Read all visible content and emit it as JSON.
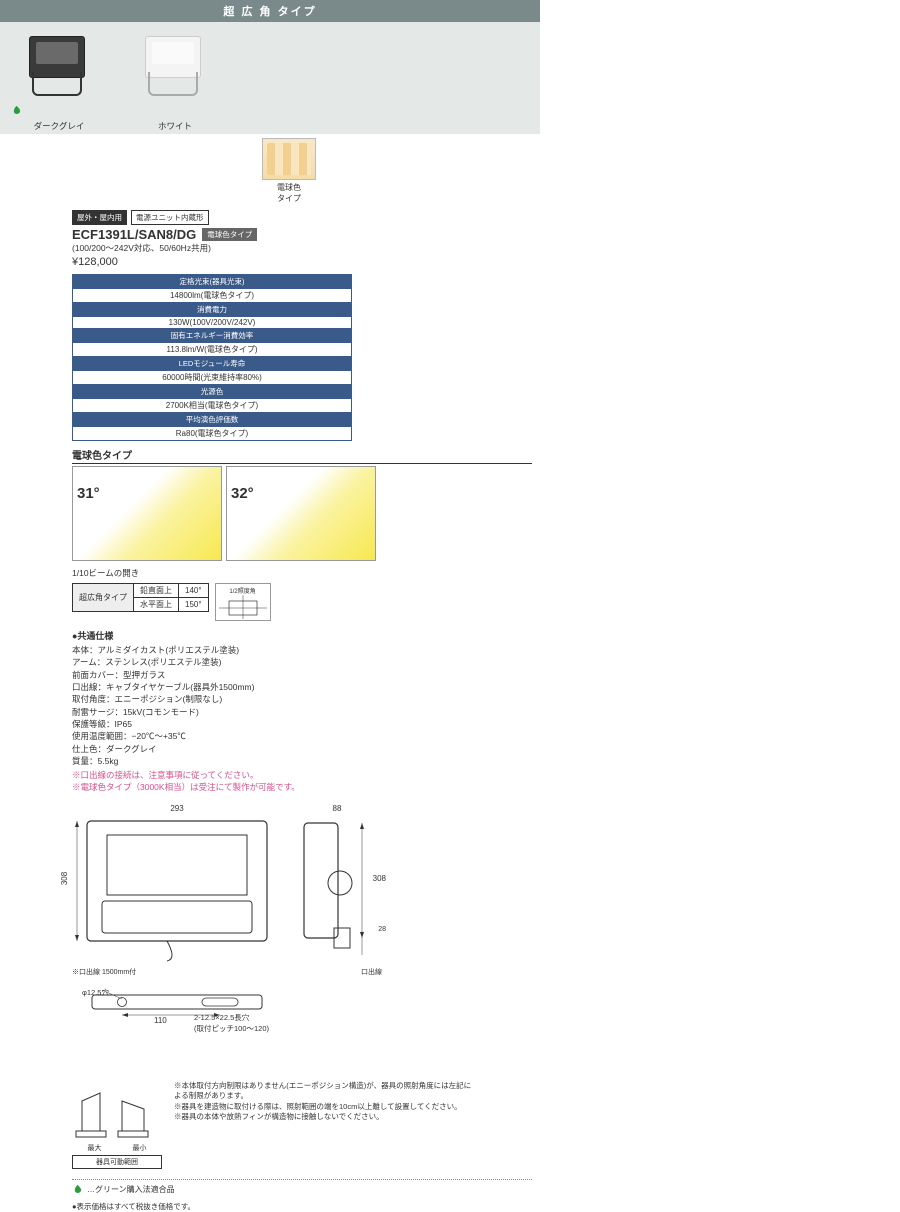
{
  "header": "超 広 角 タイプ",
  "products": [
    {
      "label": "ダークグレイ",
      "dark": true
    },
    {
      "label": "ホワイト",
      "dark": false
    }
  ],
  "thumb_label": "電球色\nタイプ",
  "tags": {
    "t1": "屋外・屋内用",
    "t2": "電源ユニット内蔵形"
  },
  "model": "ECF1391L/SAN8/DG",
  "model_badge": "電球色タイプ",
  "model_sub": "(100/200～242V対応、50/60Hz共用)",
  "price": "¥128,000",
  "spec_rows": [
    {
      "h": "定格光束(器具光束)",
      "v": "14800lm(電球色タイプ)"
    },
    {
      "h": "消費電力",
      "v": "130W(100V/200V/242V)"
    },
    {
      "h": "固有エネルギー消費効率",
      "v": "113.8lm/W(電球色タイプ)"
    },
    {
      "h": "LEDモジュール寿命",
      "v": "60000時間(光束維持率80%)"
    },
    {
      "h": "光源色",
      "v": "2700K相当(電球色タイプ)"
    },
    {
      "h": "平均演色評価数",
      "v": "Ra80(電球色タイプ)"
    }
  ],
  "sub_title": "電球色タイプ",
  "chart_angles": [
    "31°",
    "32°"
  ],
  "beam_open_title": "1/10ビームの開き",
  "beam_type": "超広角タイプ",
  "beam_rows": [
    {
      "k": "鉛直面上",
      "v": "140°"
    },
    {
      "k": "水平面上",
      "v": "150°"
    }
  ],
  "beam_dia_label": "1/2照度角",
  "specs_title": "●共通仕様",
  "specs": [
    "本体：アルミダイカスト(ポリエステル塗装)",
    "アーム：ステンレス(ポリエステル塗装)",
    "前面カバー：型押ガラス",
    "口出線：キャブタイヤケーブル(器具外1500mm)",
    "取付角度：エニーポジション(制限なし)",
    "耐雷サージ：15kV(コモンモード)",
    "保護等級：IP65",
    "使用温度範囲：−20℃〜+35℃",
    "仕上色：ダークグレイ",
    "質量：5.5kg"
  ],
  "spec_notes": [
    "※口出線の接続は、注意事項に従ってください。",
    "※電球色タイプ（3000K相当）は受注にて製作が可能です。"
  ],
  "dim": {
    "w": "293",
    "h": "308",
    "d": "88",
    "d2": "308",
    "gap": "28",
    "cable": "※口出線 1500mm付",
    "out": "口出線",
    "hole": "φ12.5穴",
    "pitch": "110",
    "slot": "2-12.5×22.5長穴",
    "pitch_note": "(取付ピッチ100〜120)"
  },
  "angle_labels": {
    "max": "最大",
    "min": "最小",
    "note": "器具可動範囲"
  },
  "bottom_notes": [
    "※本体取付方向制限はありません(エニーポジション構造)が、器具の照射角度には左記による制限があります。",
    "※器具を建造物に取付ける際は、照射範囲の端を10cm以上離して設置してください。",
    "※器具の本体や放熱フィンが構造物に接触しないでください。"
  ],
  "green_label": "…グリーン購入法適合品",
  "footer": "●表示価格はすべて税抜き価格です。"
}
